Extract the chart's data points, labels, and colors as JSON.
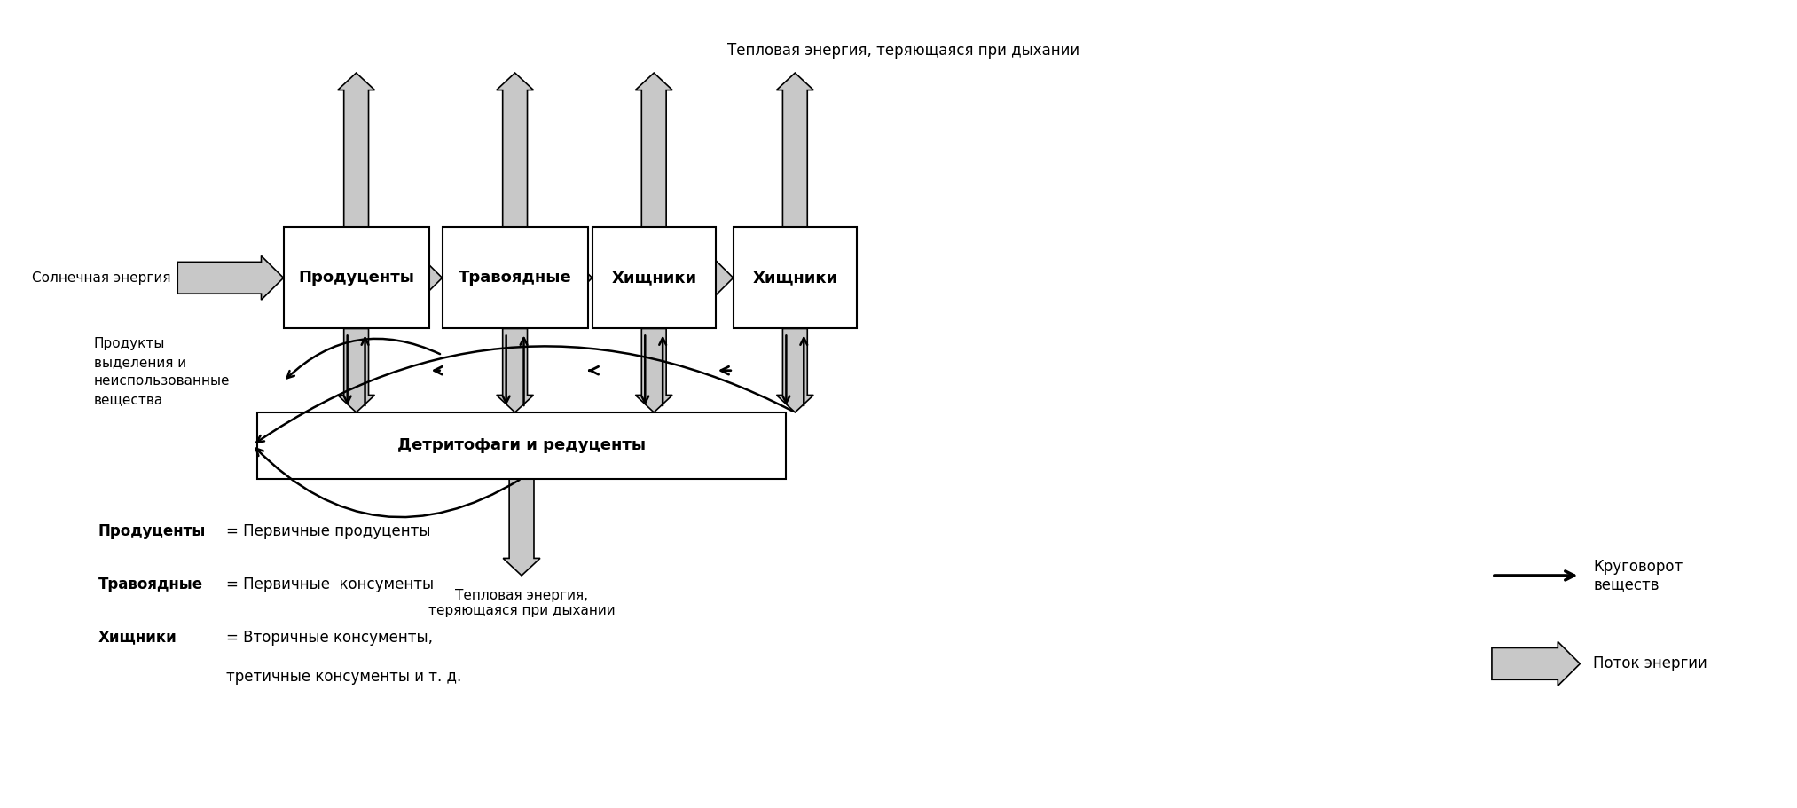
{
  "bg_color": "#ffffff",
  "title_top": "Тепловая энергия, теряющаяся при дыхании",
  "solar_label": "Солнечная энергия",
  "products_label": "Продукты\nвыделения и\nнеиспользованные\nвещества",
  "detritus_label": "Детритофаги и редуценты",
  "heat_bottom_label": "Тепловая энергия,\nтеряющаяся при дыхании",
  "box_color": "#ffffff",
  "arrow_gray": "#c8c8c8",
  "arrow_edge": "#000000",
  "legend_cycle": "Круговорот\nвеществ",
  "legend_flow": "Поток энергии",
  "legend_items": [
    [
      "Продуценты",
      "= Первичные продуценты"
    ],
    [
      "Травоядные",
      "= Первичные  консументы"
    ],
    [
      "Хищники",
      "= Вторичные консументы,"
    ]
  ],
  "legend_extra": "третичные консументы и т. д."
}
